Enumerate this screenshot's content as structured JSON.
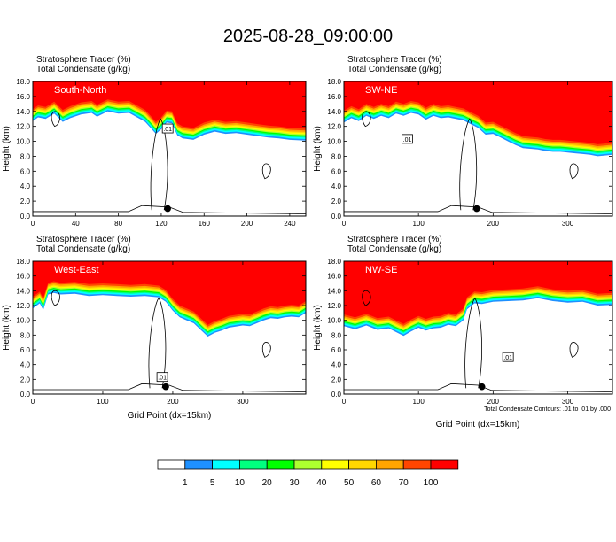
{
  "page": {
    "title": "2025-08-28_09:00:00"
  },
  "chart_data": {
    "type": "heatmap",
    "suptitle": "2025-08-28_09:00:00",
    "field_label": "Stratosphere Tracer   (%)",
    "contour_label": "Total Condensate   (g/kg)",
    "ylabel": "Height (km)",
    "xlabel": "Grid Point (dx=15km)",
    "footnote": "Total Condensate Contours: .01 to .01 by .000",
    "contour_label_text": ".01",
    "yticks": [
      "0.0",
      "2.0",
      "4.0",
      "6.0",
      "8.0",
      "10.0",
      "12.0",
      "14.0",
      "16.0",
      "18.0"
    ],
    "ylim": [
      0,
      18
    ],
    "colorbar": {
      "levels": [
        "1",
        "5",
        "10",
        "20",
        "30",
        "40",
        "50",
        "60",
        "70",
        "100"
      ],
      "colors": [
        "#ffffff",
        "#1e90ff",
        "#00ffff",
        "#00ff7f",
        "#00ff00",
        "#adff2f",
        "#ffff00",
        "#ffd700",
        "#ffa500",
        "#ff4500",
        "#ff0000"
      ]
    },
    "panels": [
      {
        "name": "South-North",
        "xlim": [
          0,
          255
        ],
        "xticks": [
          0,
          40,
          80,
          120,
          160,
          200,
          240
        ],
        "tropopause": [
          [
            0,
            14.3
          ],
          [
            5,
            14.8
          ],
          [
            12,
            14.6
          ],
          [
            20,
            15.3
          ],
          [
            28,
            14.2
          ],
          [
            35,
            14.7
          ],
          [
            45,
            15.2
          ],
          [
            55,
            15.4
          ],
          [
            60,
            14.9
          ],
          [
            70,
            15.6
          ],
          [
            80,
            15.3
          ],
          [
            90,
            15.4
          ],
          [
            100,
            14.6
          ],
          [
            105,
            14.2
          ],
          [
            110,
            13.4
          ],
          [
            115,
            12.6
          ],
          [
            120,
            13.2
          ],
          [
            125,
            14.1
          ],
          [
            130,
            14.0
          ],
          [
            135,
            12.4
          ],
          [
            140,
            12.0
          ],
          [
            150,
            11.8
          ],
          [
            160,
            12.5
          ],
          [
            170,
            12.9
          ],
          [
            180,
            12.6
          ],
          [
            190,
            12.7
          ],
          [
            200,
            12.5
          ],
          [
            210,
            12.3
          ],
          [
            220,
            12.1
          ],
          [
            230,
            12.0
          ],
          [
            240,
            11.8
          ],
          [
            255,
            11.7
          ]
        ],
        "marker": [
          126,
          1.0
        ],
        "contour_label_at": [
          126,
          11.6
        ]
      },
      {
        "name": "SW-NE",
        "xlim": [
          0,
          360
        ],
        "xticks": [
          0,
          100,
          200,
          300
        ],
        "tropopause": [
          [
            0,
            14.1
          ],
          [
            10,
            14.7
          ],
          [
            20,
            14.3
          ],
          [
            30,
            15.0
          ],
          [
            40,
            14.6
          ],
          [
            50,
            15.0
          ],
          [
            60,
            14.7
          ],
          [
            70,
            15.3
          ],
          [
            80,
            15.0
          ],
          [
            90,
            15.4
          ],
          [
            100,
            15.2
          ],
          [
            110,
            14.5
          ],
          [
            120,
            15.0
          ],
          [
            130,
            14.7
          ],
          [
            140,
            14.8
          ],
          [
            150,
            14.6
          ],
          [
            160,
            14.4
          ],
          [
            170,
            13.9
          ],
          [
            180,
            13.4
          ],
          [
            190,
            12.5
          ],
          [
            200,
            12.6
          ],
          [
            210,
            12.1
          ],
          [
            220,
            11.6
          ],
          [
            230,
            11.1
          ],
          [
            240,
            10.7
          ],
          [
            250,
            10.6
          ],
          [
            260,
            10.5
          ],
          [
            270,
            10.3
          ],
          [
            280,
            10.2
          ],
          [
            290,
            10.2
          ],
          [
            300,
            10.1
          ],
          [
            310,
            10.0
          ],
          [
            320,
            9.9
          ],
          [
            330,
            9.8
          ],
          [
            340,
            9.6
          ],
          [
            350,
            9.7
          ],
          [
            360,
            9.8
          ]
        ],
        "marker": [
          178,
          1.0
        ],
        "contour_label_at": [
          85,
          10.2
        ]
      },
      {
        "name": "West-East",
        "xlim": [
          0,
          390
        ],
        "xticks": [
          0,
          100,
          200,
          300
        ],
        "tropopause": [
          [
            0,
            13.2
          ],
          [
            10,
            13.9
          ],
          [
            15,
            13.0
          ],
          [
            22,
            15.1
          ],
          [
            30,
            15.3
          ],
          [
            40,
            15.1
          ],
          [
            60,
            15.2
          ],
          [
            80,
            14.9
          ],
          [
            100,
            15.0
          ],
          [
            120,
            14.9
          ],
          [
            140,
            14.8
          ],
          [
            160,
            14.9
          ],
          [
            180,
            14.7
          ],
          [
            190,
            14.1
          ],
          [
            200,
            12.9
          ],
          [
            210,
            12.0
          ],
          [
            220,
            11.6
          ],
          [
            230,
            11.2
          ],
          [
            240,
            10.3
          ],
          [
            250,
            9.4
          ],
          [
            260,
            9.9
          ],
          [
            270,
            10.2
          ],
          [
            280,
            10.6
          ],
          [
            300,
            10.9
          ],
          [
            310,
            10.8
          ],
          [
            320,
            11.2
          ],
          [
            330,
            11.6
          ],
          [
            340,
            11.9
          ],
          [
            350,
            11.8
          ],
          [
            360,
            12.0
          ],
          [
            370,
            12.1
          ],
          [
            380,
            12.0
          ],
          [
            390,
            12.6
          ]
        ],
        "marker": [
          190,
          1.0
        ],
        "contour_label_at": [
          185,
          2.2
        ]
      },
      {
        "name": "NW-SE",
        "xlim": [
          0,
          360
        ],
        "xticks": [
          0,
          100,
          200,
          300
        ],
        "tropopause": [
          [
            0,
            10.8
          ],
          [
            15,
            10.4
          ],
          [
            30,
            10.9
          ],
          [
            45,
            10.3
          ],
          [
            60,
            10.5
          ],
          [
            70,
            10.0
          ],
          [
            80,
            9.5
          ],
          [
            90,
            10.1
          ],
          [
            100,
            10.6
          ],
          [
            110,
            10.2
          ],
          [
            120,
            10.5
          ],
          [
            130,
            10.6
          ],
          [
            140,
            11.0
          ],
          [
            150,
            10.8
          ],
          [
            160,
            11.6
          ],
          [
            165,
            13.1
          ],
          [
            175,
            13.9
          ],
          [
            185,
            13.8
          ],
          [
            200,
            14.1
          ],
          [
            220,
            14.2
          ],
          [
            240,
            14.3
          ],
          [
            260,
            14.6
          ],
          [
            280,
            14.2
          ],
          [
            300,
            14.0
          ],
          [
            320,
            14.1
          ],
          [
            340,
            13.6
          ],
          [
            360,
            13.7
          ]
        ],
        "marker": [
          185,
          1.0
        ],
        "contour_label_at": [
          220,
          4.9
        ]
      }
    ]
  }
}
